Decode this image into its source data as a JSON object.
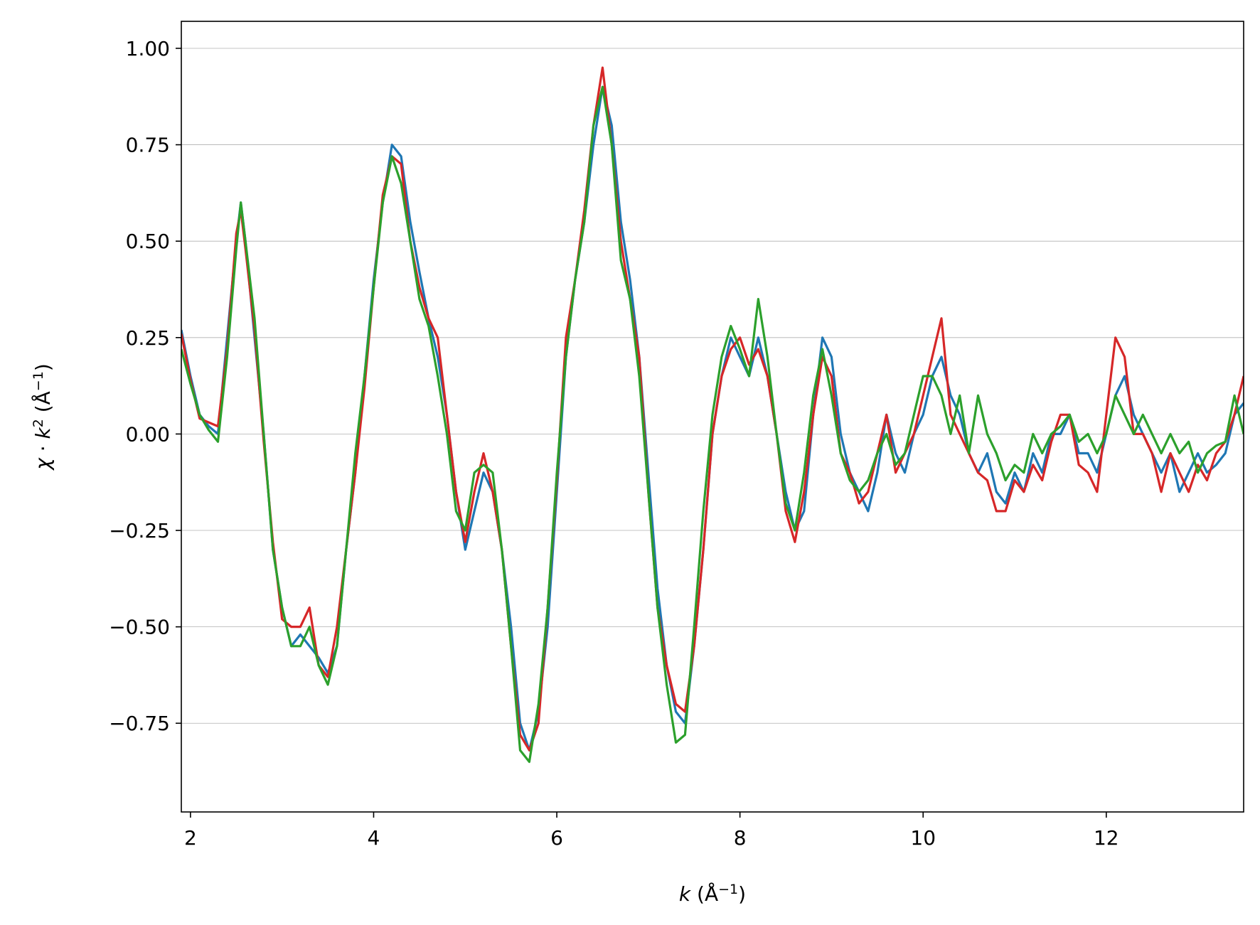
{
  "chart_data": {
    "type": "line",
    "title": "",
    "xlabel": {
      "var": "k",
      "unit": " (Å",
      "exp": "−1",
      "close": ")"
    },
    "ylabel": {
      "chi": "χ",
      "dot": " · ",
      "k": "k",
      "pow": "2",
      "unit": " (Å",
      "exp": "−1",
      "close": ")"
    },
    "xlim": [
      1.9,
      13.5
    ],
    "ylim": [
      -0.98,
      1.07
    ],
    "xticks": [
      2,
      4,
      6,
      8,
      10,
      12
    ],
    "yticks": [
      1.0,
      0.75,
      0.5,
      0.25,
      0.0,
      -0.25,
      -0.5,
      -0.75
    ],
    "ytick_labels": [
      "1.00",
      "0.75",
      "0.50",
      "0.25",
      "0.00",
      "−0.25",
      "−0.50",
      "−0.75"
    ],
    "grid": {
      "y": true,
      "x": false
    },
    "x": [
      1.9,
      2.0,
      2.1,
      2.2,
      2.3,
      2.4,
      2.5,
      2.55,
      2.6,
      2.7,
      2.8,
      2.9,
      3.0,
      3.1,
      3.2,
      3.3,
      3.4,
      3.5,
      3.6,
      3.7,
      3.8,
      3.9,
      4.0,
      4.1,
      4.2,
      4.3,
      4.4,
      4.5,
      4.6,
      4.7,
      4.8,
      4.9,
      5.0,
      5.1,
      5.2,
      5.3,
      5.4,
      5.5,
      5.6,
      5.7,
      5.8,
      5.9,
      6.0,
      6.1,
      6.2,
      6.3,
      6.4,
      6.5,
      6.6,
      6.7,
      6.8,
      6.9,
      7.0,
      7.1,
      7.2,
      7.3,
      7.4,
      7.5,
      7.6,
      7.7,
      7.8,
      7.9,
      8.0,
      8.1,
      8.2,
      8.3,
      8.4,
      8.5,
      8.6,
      8.7,
      8.8,
      8.9,
      9.0,
      9.1,
      9.2,
      9.3,
      9.4,
      9.5,
      9.6,
      9.7,
      9.8,
      9.9,
      10.0,
      10.1,
      10.2,
      10.3,
      10.4,
      10.5,
      10.6,
      10.7,
      10.8,
      10.9,
      11.0,
      11.1,
      11.2,
      11.3,
      11.4,
      11.5,
      11.6,
      11.7,
      11.8,
      11.9,
      12.0,
      12.1,
      12.2,
      12.3,
      12.4,
      12.5,
      12.6,
      12.7,
      12.8,
      12.9,
      13.0,
      13.1,
      13.2,
      13.3,
      13.4,
      13.5
    ],
    "series": [
      {
        "color": "#1f77b4",
        "values": [
          0.27,
          0.15,
          0.05,
          0.02,
          0.0,
          0.25,
          0.5,
          0.6,
          0.5,
          0.25,
          0.0,
          -0.3,
          -0.45,
          -0.55,
          -0.52,
          -0.55,
          -0.58,
          -0.62,
          -0.55,
          -0.3,
          -0.1,
          0.15,
          0.4,
          0.6,
          0.75,
          0.72,
          0.55,
          0.42,
          0.3,
          0.2,
          0.05,
          -0.15,
          -0.3,
          -0.2,
          -0.1,
          -0.15,
          -0.3,
          -0.5,
          -0.75,
          -0.82,
          -0.72,
          -0.5,
          -0.15,
          0.2,
          0.4,
          0.55,
          0.75,
          0.9,
          0.8,
          0.55,
          0.4,
          0.2,
          -0.1,
          -0.4,
          -0.6,
          -0.72,
          -0.75,
          -0.55,
          -0.3,
          0.0,
          0.15,
          0.25,
          0.2,
          0.15,
          0.25,
          0.15,
          0.0,
          -0.15,
          -0.25,
          -0.2,
          0.05,
          0.25,
          0.2,
          0.0,
          -0.1,
          -0.15,
          -0.2,
          -0.1,
          0.05,
          -0.05,
          -0.1,
          0.0,
          0.05,
          0.15,
          0.2,
          0.1,
          0.05,
          -0.05,
          -0.1,
          -0.05,
          -0.15,
          -0.18,
          -0.1,
          -0.15,
          -0.05,
          -0.1,
          0.0,
          0.0,
          0.05,
          -0.05,
          -0.05,
          -0.1,
          0.0,
          0.1,
          0.15,
          0.05,
          0.0,
          -0.05,
          -0.1,
          -0.05,
          -0.15,
          -0.1,
          -0.05,
          -0.1,
          -0.08,
          -0.05,
          0.05,
          0.08
        ]
      },
      {
        "color": "#d62728",
        "values": [
          0.26,
          0.14,
          0.04,
          0.03,
          0.02,
          0.22,
          0.52,
          0.58,
          0.48,
          0.27,
          -0.02,
          -0.28,
          -0.48,
          -0.5,
          -0.5,
          -0.45,
          -0.6,
          -0.63,
          -0.5,
          -0.3,
          -0.1,
          0.12,
          0.38,
          0.62,
          0.72,
          0.7,
          0.5,
          0.38,
          0.3,
          0.25,
          0.05,
          -0.15,
          -0.28,
          -0.15,
          -0.05,
          -0.15,
          -0.3,
          -0.55,
          -0.78,
          -0.82,
          -0.75,
          -0.45,
          -0.12,
          0.25,
          0.4,
          0.58,
          0.8,
          0.95,
          0.75,
          0.5,
          0.35,
          0.2,
          -0.15,
          -0.45,
          -0.6,
          -0.7,
          -0.72,
          -0.55,
          -0.3,
          0.0,
          0.15,
          0.22,
          0.25,
          0.18,
          0.22,
          0.15,
          0.0,
          -0.2,
          -0.28,
          -0.15,
          0.05,
          0.2,
          0.15,
          -0.05,
          -0.1,
          -0.18,
          -0.15,
          -0.05,
          0.05,
          -0.1,
          -0.05,
          0.0,
          0.1,
          0.2,
          0.3,
          0.05,
          0.0,
          -0.05,
          -0.1,
          -0.12,
          -0.2,
          -0.2,
          -0.12,
          -0.15,
          -0.08,
          -0.12,
          -0.02,
          0.05,
          0.05,
          -0.08,
          -0.1,
          -0.15,
          0.05,
          0.25,
          0.2,
          0.0,
          0.0,
          -0.05,
          -0.15,
          -0.05,
          -0.1,
          -0.15,
          -0.08,
          -0.12,
          -0.05,
          -0.02,
          0.05,
          0.15
        ]
      },
      {
        "color": "#2ca02c",
        "values": [
          0.22,
          0.13,
          0.05,
          0.01,
          -0.02,
          0.2,
          0.48,
          0.6,
          0.5,
          0.3,
          0.0,
          -0.3,
          -0.45,
          -0.55,
          -0.55,
          -0.5,
          -0.6,
          -0.65,
          -0.55,
          -0.3,
          -0.05,
          0.15,
          0.38,
          0.6,
          0.72,
          0.65,
          0.5,
          0.35,
          0.28,
          0.15,
          0.0,
          -0.2,
          -0.25,
          -0.1,
          -0.08,
          -0.1,
          -0.3,
          -0.55,
          -0.82,
          -0.85,
          -0.7,
          -0.45,
          -0.1,
          0.2,
          0.4,
          0.55,
          0.8,
          0.9,
          0.75,
          0.45,
          0.35,
          0.15,
          -0.15,
          -0.45,
          -0.65,
          -0.8,
          -0.78,
          -0.5,
          -0.2,
          0.05,
          0.2,
          0.28,
          0.22,
          0.15,
          0.35,
          0.2,
          0.0,
          -0.18,
          -0.25,
          -0.1,
          0.1,
          0.22,
          0.1,
          -0.05,
          -0.12,
          -0.15,
          -0.12,
          -0.05,
          0.0,
          -0.08,
          -0.05,
          0.05,
          0.15,
          0.15,
          0.1,
          0.0,
          0.1,
          -0.05,
          0.1,
          0.0,
          -0.05,
          -0.12,
          -0.08,
          -0.1,
          0.0,
          -0.05,
          0.0,
          0.02,
          0.05,
          -0.02,
          0.0,
          -0.05,
          0.0,
          0.1,
          0.05,
          0.0,
          0.05,
          0.0,
          -0.05,
          0.0,
          -0.05,
          -0.02,
          -0.1,
          -0.05,
          -0.03,
          -0.02,
          0.1,
          0.0
        ]
      }
    ]
  }
}
